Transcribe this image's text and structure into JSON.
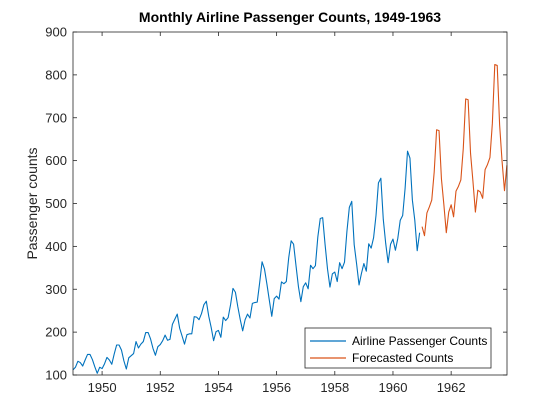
{
  "chart_data": {
    "type": "line",
    "title": "Monthly Airline Passenger Counts, 1949-1963",
    "xlabel": "",
    "ylabel": "Passenger counts",
    "xlim": [
      1949,
      1963.92
    ],
    "ylim": [
      100,
      900
    ],
    "xticks": [
      1950,
      1952,
      1954,
      1956,
      1958,
      1960,
      1962
    ],
    "yticks": [
      100,
      200,
      300,
      400,
      500,
      600,
      700,
      800,
      900
    ],
    "grid": false,
    "legend_position": "bottom-right",
    "series": [
      {
        "name": "Airline Passenger Counts",
        "color": "#0072BD",
        "x_start": 1949,
        "x_step": 0.0833333,
        "values": [
          112,
          118,
          132,
          129,
          121,
          135,
          148,
          148,
          136,
          119,
          104,
          118,
          115,
          126,
          141,
          135,
          125,
          149,
          170,
          170,
          158,
          133,
          114,
          140,
          145,
          150,
          178,
          163,
          172,
          178,
          199,
          199,
          184,
          162,
          146,
          166,
          171,
          180,
          193,
          181,
          183,
          218,
          230,
          242,
          209,
          191,
          172,
          194,
          196,
          196,
          236,
          235,
          229,
          243,
          264,
          272,
          237,
          211,
          180,
          201,
          204,
          188,
          235,
          227,
          234,
          264,
          302,
          293,
          259,
          229,
          203,
          229,
          242,
          233,
          267,
          269,
          270,
          315,
          364,
          347,
          312,
          274,
          237,
          278,
          284,
          277,
          317,
          313,
          318,
          374,
          413,
          405,
          355,
          306,
          271,
          306,
          315,
          301,
          356,
          348,
          355,
          422,
          465,
          467,
          404,
          347,
          305,
          336,
          340,
          318,
          362,
          348,
          363,
          435,
          491,
          505,
          404,
          359,
          310,
          337,
          360,
          342,
          406,
          396,
          420,
          472,
          548,
          559,
          463,
          407,
          362,
          405,
          417,
          391,
          419,
          461,
          472,
          535,
          622,
          606,
          508,
          461,
          390,
          432
        ]
      },
      {
        "name": "Forecasted Counts",
        "color": "#D95319",
        "x_start": 1961,
        "x_step": 0.0833333,
        "values": [
          446,
          425,
          478,
          492,
          508,
          573,
          672,
          670,
          557,
          497,
          432,
          480,
          497,
          469,
          529,
          540,
          555,
          628,
          744,
          742,
          617,
          551,
          480,
          531,
          527,
          512,
          579,
          591,
          607,
          687,
          824,
          822,
          683,
          599,
          530,
          589
        ]
      }
    ]
  }
}
